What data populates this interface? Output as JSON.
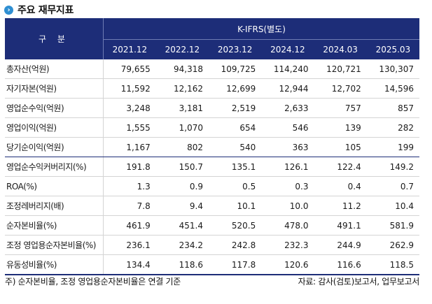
{
  "title": "주요 재무지표",
  "header": {
    "category_label": "구 분",
    "standard_label": "K-IFRS(별도)",
    "periods": [
      "2021.12",
      "2022.12",
      "2023.12",
      "2024.12",
      "2024.03",
      "2025.03"
    ]
  },
  "rows": [
    {
      "label": "총자산(억원)",
      "values": [
        "79,655",
        "94,318",
        "109,725",
        "114,240",
        "120,721",
        "130,307"
      ]
    },
    {
      "label": "자기자본(억원)",
      "values": [
        "11,592",
        "12,162",
        "12,699",
        "12,944",
        "12,702",
        "14,596"
      ]
    },
    {
      "label": "영업순수익(억원)",
      "values": [
        "3,248",
        "3,181",
        "2,519",
        "2,633",
        "757",
        "857"
      ]
    },
    {
      "label": "영업이익(억원)",
      "values": [
        "1,555",
        "1,070",
        "654",
        "546",
        "139",
        "282"
      ]
    },
    {
      "label": "당기순이익(억원)",
      "values": [
        "1,167",
        "802",
        "540",
        "363",
        "105",
        "199"
      ]
    },
    {
      "label": "영업순수익커버리지(%)",
      "values": [
        "191.8",
        "150.7",
        "135.1",
        "126.1",
        "122.4",
        "149.2"
      ]
    },
    {
      "label": "ROA(%)",
      "values": [
        "1.3",
        "0.9",
        "0.5",
        "0.3",
        "0.4",
        "0.7"
      ]
    },
    {
      "label": "조정레버리지(배)",
      "values": [
        "7.8",
        "9.4",
        "10.1",
        "10.0",
        "11.2",
        "10.4"
      ]
    },
    {
      "label": "순자본비율(%)",
      "values": [
        "461.9",
        "451.4",
        "520.5",
        "478.0",
        "491.1",
        "581.9"
      ]
    },
    {
      "label": "조정 영업용순자본비율(%)",
      "values": [
        "236.1",
        "234.2",
        "242.8",
        "232.3",
        "244.9",
        "262.9"
      ]
    },
    {
      "label": "유동성비율(%)",
      "values": [
        "134.4",
        "118.6",
        "117.8",
        "120.6",
        "116.6",
        "118.5"
      ]
    }
  ],
  "footnote": "주) 순자본비율, 조정 영업용순자본비율은 연결 기준",
  "source": "자료: 감사(검토)보고서, 업무보고서",
  "colors": {
    "header_bg": "#1d2d78",
    "icon": "#2f8fd2"
  }
}
